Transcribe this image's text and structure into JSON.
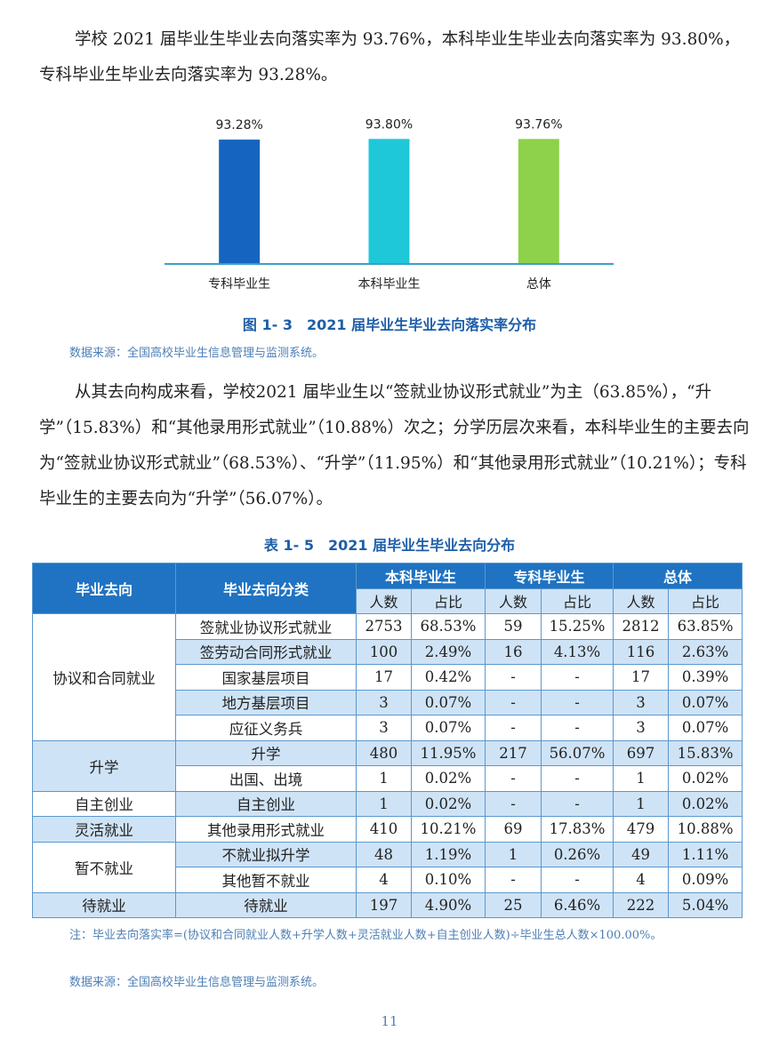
{
  "para1": "学校 2021 届毕业生毕业去向落实率为 93.76%，本科毕业生毕业去向落实率为 93.80%，专科毕业生毕业去向落实率为 93.28%。",
  "figure": {
    "caption": "图 1- 3　2021 届毕业生毕业去向落实率分布",
    "source": "数据来源：全国高校毕业生信息管理与监测系统。"
  },
  "chart_data": {
    "type": "bar",
    "categories": [
      "专科毕业生",
      "本科毕业生",
      "总体"
    ],
    "values": [
      93.28,
      93.8,
      93.76
    ],
    "data_labels": [
      "93.28%",
      "93.80%",
      "93.76%"
    ],
    "colors": [
      "#1565c0",
      "#1ec8d8",
      "#8ed14b"
    ],
    "ylim": [
      0,
      100
    ],
    "grid": false,
    "axis_color": "#3aa0c8"
  },
  "para2": "从其去向构成来看，学校2021 届毕业生以“签就业协议形式就业”为主（63.85%），“升学”（15.83%）和“其他录用形式就业”（10.88%）次之；分学历层次来看，本科毕业生的主要去向为“签就业协议形式就业”（68.53%）、“升学”（11.95%）和“其他录用形式就业”（10.21%）；专科毕业生的主要去向为“升学”（56.07%）。",
  "table": {
    "title": "表 1- 5　2021 届毕业生毕业去向分布",
    "headers": {
      "col1": "毕业去向",
      "col2": "毕业去向分类",
      "groups": [
        "本科毕业生",
        "专科毕业生",
        "总体"
      ],
      "sub": [
        "人数",
        "占比",
        "人数",
        "占比",
        "人数",
        "占比"
      ]
    },
    "groups": [
      {
        "name": "协议和合同就业",
        "rows": [
          [
            "签就业协议形式就业",
            "2753",
            "68.53%",
            "59",
            "15.25%",
            "2812",
            "63.85%"
          ],
          [
            "签劳动合同形式就业",
            "100",
            "2.49%",
            "16",
            "4.13%",
            "116",
            "2.63%"
          ],
          [
            "国家基层项目",
            "17",
            "0.42%",
            "-",
            "-",
            "17",
            "0.39%"
          ],
          [
            "地方基层项目",
            "3",
            "0.07%",
            "-",
            "-",
            "3",
            "0.07%"
          ],
          [
            "应征义务兵",
            "3",
            "0.07%",
            "-",
            "-",
            "3",
            "0.07%"
          ]
        ]
      },
      {
        "name": "升学",
        "rows": [
          [
            "升学",
            "480",
            "11.95%",
            "217",
            "56.07%",
            "697",
            "15.83%"
          ],
          [
            "出国、出境",
            "1",
            "0.02%",
            "-",
            "-",
            "1",
            "0.02%"
          ]
        ]
      },
      {
        "name": "自主创业",
        "rows": [
          [
            "自主创业",
            "1",
            "0.02%",
            "-",
            "-",
            "1",
            "0.02%"
          ]
        ]
      },
      {
        "name": "灵活就业",
        "rows": [
          [
            "其他录用形式就业",
            "410",
            "10.21%",
            "69",
            "17.83%",
            "479",
            "10.88%"
          ]
        ]
      },
      {
        "name": "暂不就业",
        "rows": [
          [
            "不就业拟升学",
            "48",
            "1.19%",
            "1",
            "0.26%",
            "49",
            "1.11%"
          ],
          [
            "其他暂不就业",
            "4",
            "0.10%",
            "-",
            "-",
            "4",
            "0.09%"
          ]
        ]
      },
      {
        "name": "待就业",
        "rows": [
          [
            "待就业",
            "197",
            "4.90%",
            "25",
            "6.46%",
            "222",
            "5.04%"
          ]
        ]
      }
    ],
    "note": "注：毕业去向落实率=(协议和合同就业人数+升学人数+灵活就业人数+自主创业人数)÷毕业生总人数×100.00%。",
    "source": "数据来源：全国高校毕业生信息管理与监测系统。"
  },
  "page_number": "11"
}
